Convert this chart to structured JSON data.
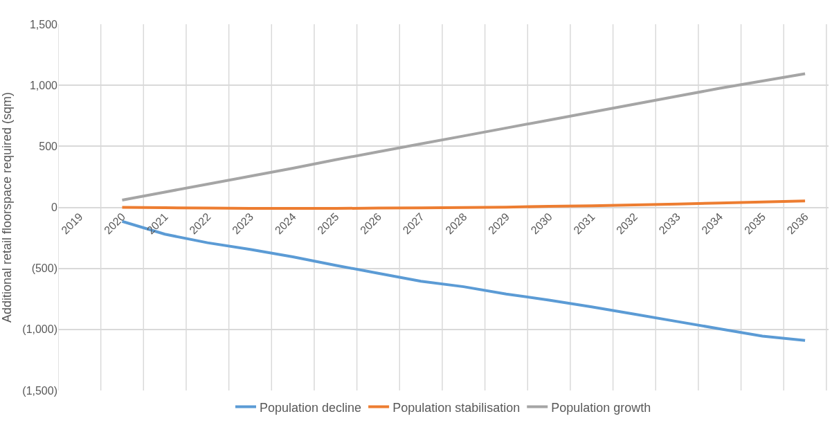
{
  "chart_data": {
    "type": "line",
    "ylabel": "Additional retail floorspace required (sqm)",
    "categories": [
      "2019",
      "2020",
      "2021",
      "2022",
      "2023",
      "2024",
      "2025",
      "2026",
      "2027",
      "2028",
      "2029",
      "2030",
      "2031",
      "2032",
      "2033",
      "2034",
      "2035",
      "2036"
    ],
    "series": [
      {
        "name": "Population decline",
        "color": "#5b9bd5",
        "values": [
          null,
          -115,
          -220,
          -290,
          -345,
          -405,
          -475,
          -540,
          -605,
          -650,
          -710,
          -760,
          -815,
          -875,
          -935,
          -995,
          -1055,
          -1090
        ]
      },
      {
        "name": "Population stabilisation",
        "color": "#ed7d31",
        "values": [
          null,
          0,
          -3,
          -6,
          -9,
          -9,
          -9,
          -6,
          -4,
          -2,
          2,
          8,
          13,
          20,
          27,
          35,
          44,
          52
        ]
      },
      {
        "name": "Population growth",
        "color": "#a5a5a5",
        "values": [
          null,
          60,
          125,
          190,
          255,
          320,
          390,
          455,
          520,
          585,
          650,
          715,
          780,
          845,
          910,
          975,
          1035,
          1095
        ]
      }
    ],
    "ylim": [
      -1500,
      1500
    ],
    "yticks": [
      {
        "value": -1500,
        "label": "(1,500)"
      },
      {
        "value": -1000,
        "label": "(1,000)"
      },
      {
        "value": -500,
        "label": "(500)"
      },
      0,
      {
        "value": 500,
        "label": "500"
      },
      {
        "value": 1000,
        "label": "1,000"
      },
      {
        "value": 1500,
        "label": "1,500"
      }
    ],
    "grid": true,
    "legend": "bottom",
    "marker": "none",
    "line_style": "solid"
  }
}
